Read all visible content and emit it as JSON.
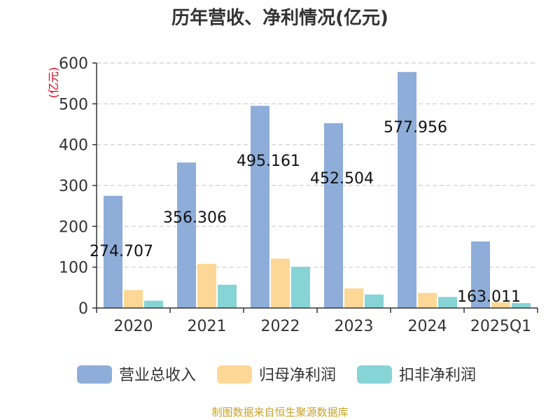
{
  "chart_data": {
    "type": "bar",
    "title": "历年营收、净利情况(亿元)",
    "unit_label": "(亿元)",
    "categories": [
      "2020",
      "2021",
      "2022",
      "2023",
      "2024",
      "2025Q1"
    ],
    "series": [
      {
        "name": "营业总收入",
        "color": "#8eadd9",
        "values": [
          274.707,
          356.306,
          495.161,
          452.504,
          577.956,
          163.011
        ]
      },
      {
        "name": "归母净利润",
        "color": "#fdd795",
        "values": [
          44,
          108,
          121,
          48,
          37,
          14
        ]
      },
      {
        "name": "扣非净利润",
        "color": "#86d4d6",
        "values": [
          18,
          57,
          101,
          33,
          27,
          12
        ]
      }
    ],
    "data_labels": [
      "274.707",
      "356.306",
      "495.161",
      "452.504",
      "577.956",
      "163.011"
    ],
    "yticks": [
      "0",
      "100",
      "200",
      "300",
      "400",
      "500",
      "600"
    ],
    "ylim": [
      0,
      600
    ],
    "grid": true,
    "legend_position": "bottom"
  },
  "footer": {
    "source": "制图数据来自恒生聚源数据库"
  }
}
